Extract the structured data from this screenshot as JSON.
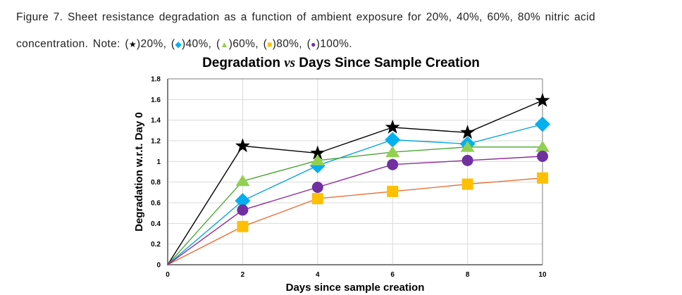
{
  "caption": {
    "label": "Figure 7",
    "text": ". Sheet resistance degradation as a function of ambient exposure for 20%, 40%, 60%, 80% nitric acid concentration. Note: ",
    "legend_items": [
      {
        "open": "(",
        "symbol": "★",
        "color": "#000000",
        "close": ")20%, "
      },
      {
        "open": "(",
        "symbol": "◆",
        "color": "#00b0f0",
        "close": ")40%, "
      },
      {
        "open": "(",
        "symbol": "▲",
        "color": "#92d050",
        "close": ")60%, "
      },
      {
        "open": "(",
        "symbol": "■",
        "color": "#ffc000",
        "close": ")80%, "
      },
      {
        "open": "(",
        "symbol": "●",
        "color": "#7030a0",
        "close": ")100%."
      }
    ]
  },
  "chart_data": {
    "type": "line",
    "title_parts": [
      "Degradation ",
      "vs",
      " Days Since Sample Creation"
    ],
    "xlabel": "Days since sample creation",
    "ylabel": "Degradation w.r.t. Day 0",
    "x": [
      0,
      2,
      4,
      6,
      8,
      10
    ],
    "xlim": [
      0,
      10
    ],
    "ylim": [
      0,
      1.8
    ],
    "xticks": [
      "0",
      "2",
      "4",
      "6",
      "8",
      "10"
    ],
    "yticks": [
      "0",
      "0.2",
      "0.4",
      "0.6",
      "0.8",
      "1",
      "1.2",
      "1.4",
      "1.6",
      "1.8"
    ],
    "ytick_values": [
      0,
      0.2,
      0.4,
      0.6,
      0.8,
      1.0,
      1.2,
      1.4,
      1.6,
      1.8
    ],
    "grid": true,
    "legend": "none (described in caption)",
    "series": [
      {
        "name": "20%",
        "marker": "star",
        "line_color": "#000000",
        "marker_color": "#000000",
        "values": [
          0,
          1.15,
          1.08,
          1.33,
          1.28,
          1.59
        ]
      },
      {
        "name": "40%",
        "marker": "diamond",
        "line_color": "#0ea5d8",
        "marker_color": "#00b0f0",
        "values": [
          0,
          0.62,
          0.96,
          1.21,
          1.17,
          1.36
        ]
      },
      {
        "name": "60%",
        "marker": "triangle",
        "line_color": "#4aa635",
        "marker_color": "#92d050",
        "values": [
          0,
          0.81,
          1.01,
          1.09,
          1.14,
          1.14
        ]
      },
      {
        "name": "80%",
        "marker": "square",
        "line_color": "#e8733a",
        "marker_color": "#ffc000",
        "values": [
          0,
          0.37,
          0.64,
          0.71,
          0.78,
          0.84
        ]
      },
      {
        "name": "100%",
        "marker": "circle",
        "line_color": "#8e2a9a",
        "marker_color": "#7030a0",
        "values": [
          0,
          0.53,
          0.75,
          0.97,
          1.01,
          1.05
        ]
      }
    ]
  }
}
